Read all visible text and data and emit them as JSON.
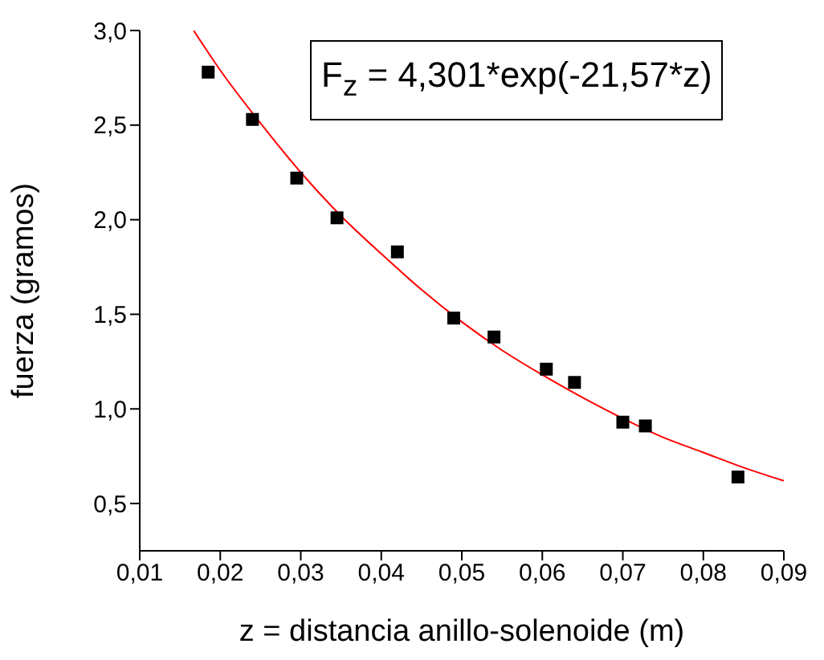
{
  "chart_data": {
    "type": "scatter",
    "xlabel": "z = distancia anillo-solenoide (m)",
    "ylabel": "fuerza (gramos)",
    "annotations": [
      "F$_{z}$ = 4,301*exp(-21,57*z)"
    ],
    "xlim": [
      0.01,
      0.09
    ],
    "xticks": [
      {
        "value": 0.01,
        "label": "0,01"
      },
      {
        "value": 0.02,
        "label": "0,02"
      },
      {
        "value": 0.03,
        "label": "0,03"
      },
      {
        "value": 0.04,
        "label": "0,04"
      },
      {
        "value": 0.05,
        "label": "0,05"
      },
      {
        "value": 0.06,
        "label": "0,06"
      },
      {
        "value": 0.07,
        "label": "0,07"
      },
      {
        "value": 0.08,
        "label": "0,08"
      },
      {
        "value": 0.09,
        "label": "0,09"
      }
    ],
    "ylim": [
      0.25,
      3.0
    ],
    "yticks": [
      {
        "value": 0.5,
        "label": "0,5"
      },
      {
        "value": 1.0,
        "label": "1,0"
      },
      {
        "value": 1.5,
        "label": "1,5"
      },
      {
        "value": 2.0,
        "label": "2,0"
      },
      {
        "value": 2.5,
        "label": "2,5"
      },
      {
        "value": 3.0,
        "label": "3,0"
      }
    ],
    "marker": "square",
    "series": [
      {
        "color": "#000000",
        "x": [
          0.0185,
          0.024,
          0.0295,
          0.0345,
          0.042,
          0.049,
          0.054,
          0.0605,
          0.064,
          0.07,
          0.0728,
          0.0843
        ],
        "values": [
          2.78,
          2.53,
          2.22,
          2.01,
          1.83,
          1.48,
          1.38,
          1.21,
          1.14,
          0.93,
          0.91,
          0.64
        ]
      },
      {
        "type": "line",
        "color": "#ff0000",
        "marker": "none",
        "line_style": "solid",
        "x": [
          0.0167,
          0.02,
          0.025,
          0.03,
          0.035,
          0.04,
          0.045,
          0.05,
          0.055,
          0.06,
          0.065,
          0.07,
          0.075,
          0.08,
          0.085,
          0.09
        ],
        "values": [
          3.0,
          2.79,
          2.51,
          2.25,
          2.02,
          1.82,
          1.63,
          1.46,
          1.31,
          1.18,
          1.06,
          0.95,
          0.85,
          0.77,
          0.69,
          0.62
        ]
      }
    ]
  }
}
